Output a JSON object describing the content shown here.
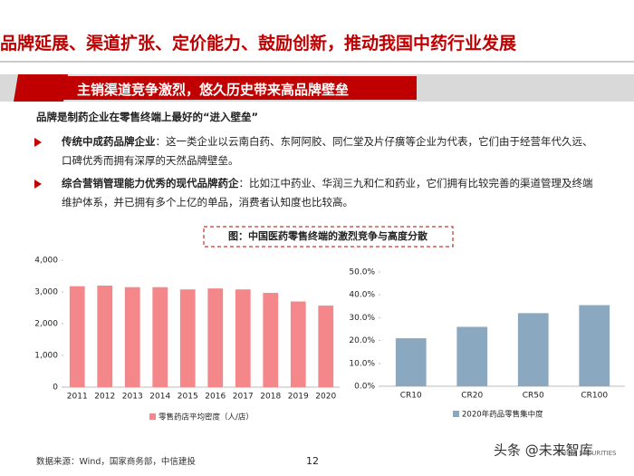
{
  "title": "品牌延展、渠道扩张、定价能力、鼓励创新，推动我国中药行业发展",
  "section_header": "主销渠道竞争激烈，悠久历史带来高品牌壁垒",
  "intro": "品牌是制药企业在零售终端上最好的“进入壁垒”",
  "bullets": [
    {
      "label": "传统中成药品牌企业",
      "text": "：这一类企业以云南白药、东阿阿胶、同仁堂及片仔癀等企业为代表，它们由于经营年代久远、口碑优秀而拥有深厚的天然品牌壁垒。"
    },
    {
      "label": "综合营销管理能力优秀的现代品牌药企",
      "text": "：比如江中药业、华润三九和仁和药业，它们拥有比较完善的渠道管理及终端维护体系，并已拥有多个上亿的单品，消费者认知度也比较高。"
    }
  ],
  "figure_title": "图：中国医药零售终端的激烈竞争与高度分散",
  "chart_data": [
    {
      "type": "bar",
      "categories": [
        "2011",
        "2012",
        "2013",
        "2014",
        "2015",
        "2016",
        "2017",
        "2018",
        "2019",
        "2020"
      ],
      "series": [
        {
          "name": "零售药店平均密度（人/店）",
          "color": "#f4878a",
          "values": [
            3180,
            3200,
            3150,
            3150,
            3080,
            3110,
            3080,
            2970,
            2700,
            2570
          ]
        }
      ],
      "ylim": [
        0,
        4000
      ],
      "yticks": [
        0,
        {
          "value": 1000,
          "label": "1,000"
        },
        {
          "value": 2000,
          "label": "2,000"
        },
        {
          "value": 3000,
          "label": "3,000"
        },
        {
          "value": 4000,
          "label": "4,000"
        }
      ]
    },
    {
      "type": "bar",
      "categories": [
        "CR10",
        "CR20",
        "CR50",
        "CR100"
      ],
      "series": [
        {
          "name": "2020年药品零售集中度",
          "color": "#8aa9c1",
          "values": [
            21,
            26,
            32,
            35.5
          ]
        }
      ],
      "ylim": [
        0,
        50
      ],
      "yticks": [
        {
          "value": 0,
          "label": "0.0%"
        },
        {
          "value": 10,
          "label": "10.0%"
        },
        {
          "value": 20,
          "label": "20.0%"
        },
        {
          "value": 30,
          "label": "30.0%"
        },
        {
          "value": 40,
          "label": "40.0%"
        },
        {
          "value": 50,
          "label": "50.0%"
        }
      ]
    }
  ],
  "source": "数据来源：Wind，国家商务部，中信建投",
  "page_number": "12",
  "logo": "CHINA SECURITIES",
  "watermark": "头条 @未来智库"
}
